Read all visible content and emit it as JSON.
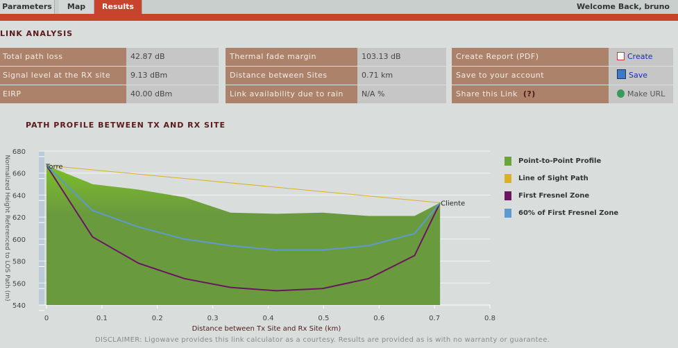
{
  "tabs": [
    {
      "label": "Parameters"
    },
    {
      "label": "Map"
    },
    {
      "label": "Results"
    }
  ],
  "welcome": "Welcome Back, bruno",
  "link_analysis": {
    "title": "LINK ANALYSIS",
    "col1": [
      {
        "label": "Total path loss",
        "value": "42.87  dB"
      },
      {
        "label": "Signal level at the RX site",
        "value": "9.13 dBm"
      },
      {
        "label": "EIRP",
        "value": "40.00 dBm"
      }
    ],
    "col2": [
      {
        "label": "Thermal fade margin",
        "value": "103.13 dB"
      },
      {
        "label": "Distance between Sites",
        "value": "0.71 km"
      },
      {
        "label": "Link availability due to rain",
        "value": "N/A %"
      }
    ],
    "col3": [
      {
        "label": "Create Report (PDF)",
        "action": "Create",
        "icon": "pdf-icon"
      },
      {
        "label": "Save to your account",
        "action": "Save",
        "icon": "save-icon"
      },
      {
        "label": "Share this Link",
        "help": "(?)",
        "action": "Make URL",
        "icon": "globe-icon"
      }
    ]
  },
  "chart_title": "PATH PROFILE BETWEEN TX AND RX SITE",
  "disclaimer": "DISCLAIMER: Ligowave provides this link calculator as a courtesy.  Results are provided as is with no warranty or guarantee.",
  "chart_data": {
    "type": "area",
    "xlabel": "Distance between Tx Site and Rx Site (km)",
    "ylabel": "Normalized Height Referenced to LOS Path (m)",
    "xlim": [
      0,
      0.8
    ],
    "ylim": [
      540,
      680
    ],
    "xticks": [
      "0",
      "0.1",
      "0.2",
      "0.3",
      "0.4",
      "0.5",
      "0.6",
      "0.7",
      "0.8"
    ],
    "yticks": [
      "540",
      "560",
      "580",
      "600",
      "620",
      "640",
      "660",
      "680"
    ],
    "x": [
      0,
      0.083,
      0.166,
      0.249,
      0.332,
      0.415,
      0.498,
      0.581,
      0.664,
      0.71
    ],
    "series": [
      {
        "name": "Point-to-Point Profile",
        "color": "#6a9a3e",
        "values": [
          667,
          650,
          645,
          638,
          624,
          623,
          624,
          621,
          621,
          633
        ]
      },
      {
        "name": "Line of Sight Path",
        "color": "#dcb020",
        "values": [
          667,
          null,
          null,
          null,
          null,
          null,
          null,
          null,
          null,
          633
        ]
      },
      {
        "name": "First Fresnel Zone",
        "color": "#6b1462",
        "values": [
          667,
          602,
          578,
          564,
          556,
          553,
          555,
          564,
          585,
          633
        ]
      },
      {
        "name": "60% of First Fresnel Zone",
        "color": "#5d9ad0",
        "values": [
          667,
          626,
          611,
          600,
          594,
          590,
          590,
          594,
          605,
          633
        ]
      }
    ],
    "annotations": [
      "Torre",
      "Cliente"
    ]
  }
}
